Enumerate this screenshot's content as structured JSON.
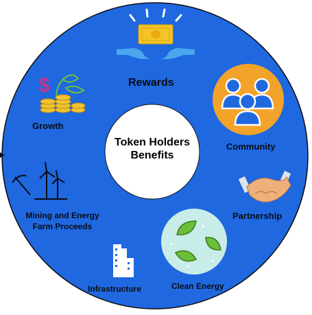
{
  "center": {
    "line1": "Token Holders",
    "line2": "Benefits"
  },
  "segments": {
    "rewards": "Rewards",
    "community": "Community",
    "partnership": "Partnership",
    "clean_energy": "Clean Energy",
    "infrastructure": "Infrastructure",
    "mining_line1": "Mining and Energy",
    "mining_line2": "Farm Proceeds",
    "growth": "Growth"
  },
  "colors": {
    "circle": "#1f68e0",
    "center": "#ffffff",
    "community_badge": "#f2a32a",
    "clean_energy_badge": "#c8ece8",
    "leaf": "#6bbf3a",
    "coin": "#f2c232",
    "money": "#f3c528",
    "hand": "#4aa6ef"
  },
  "icons": [
    "money-hands-icon",
    "people-group-icon",
    "handshake-icon",
    "leaves-icon",
    "building-icon",
    "wind-turbine-icon",
    "dollar-plant-coins-icon"
  ]
}
